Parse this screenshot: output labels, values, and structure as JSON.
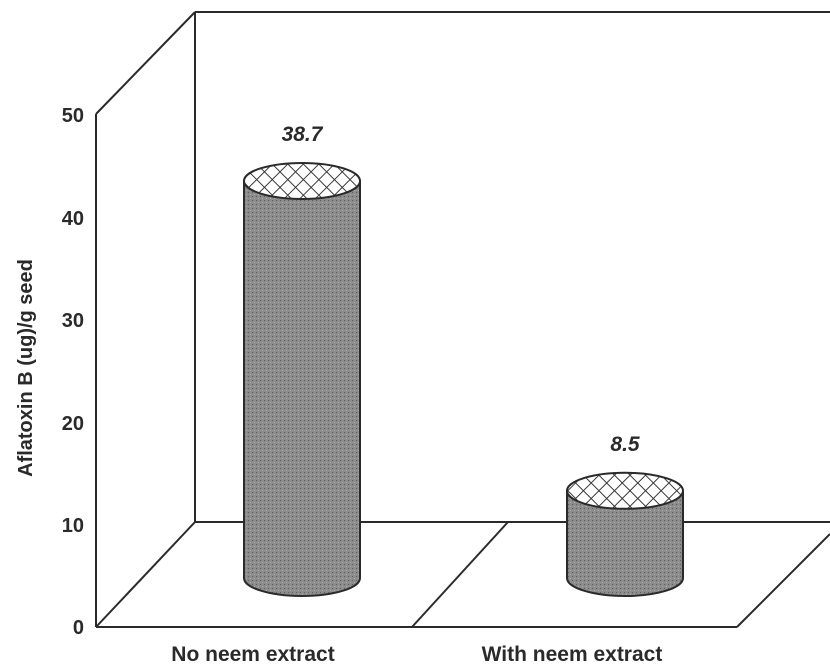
{
  "chart_data": {
    "type": "bar",
    "categories": [
      "No neem extract",
      "With neem extract"
    ],
    "values": [
      38.7,
      8.5
    ],
    "data_labels": [
      "38.7",
      "8.5"
    ],
    "title": "",
    "xlabel": "",
    "ylabel": "Aflatoxin B (ug)/g seed",
    "ylim": [
      0,
      50
    ],
    "yticks": [
      "0",
      "10",
      "20",
      "30",
      "40",
      "50"
    ],
    "bar_style": "3d-cylinder",
    "colors": {
      "bar_body": "#8c8c8c",
      "bar_top": "#ffffff",
      "hatch": "#3a3a3a",
      "frame": "#2a2a2a"
    },
    "grid": false,
    "legend": "none"
  }
}
